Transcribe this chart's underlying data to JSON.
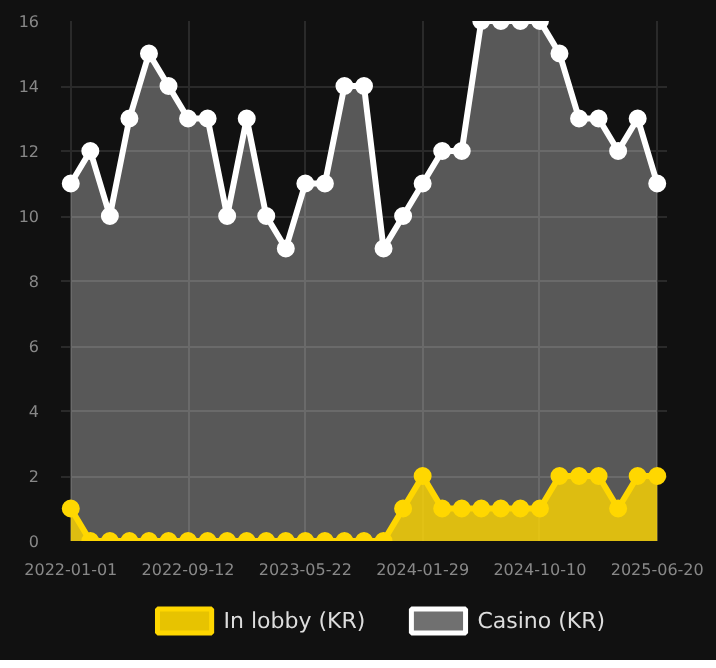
{
  "chart_data": {
    "type": "area",
    "categories": [
      "2022-01-01",
      null,
      null,
      null,
      null,
      null,
      "2022-09-12",
      null,
      null,
      null,
      null,
      null,
      "2023-05-22",
      null,
      null,
      null,
      null,
      null,
      "2024-01-29",
      null,
      null,
      null,
      null,
      null,
      "2024-10-10",
      null,
      null,
      null,
      null,
      null,
      "2025-06-20"
    ],
    "series": [
      {
        "name": "In lobby (KR)",
        "color": "#ffd700",
        "values": [
          1,
          0,
          0,
          0,
          0,
          0,
          0,
          0,
          0,
          0,
          0,
          0,
          0,
          0,
          0,
          0,
          0,
          1,
          2,
          1,
          1,
          1,
          1,
          1,
          1,
          2,
          2,
          2,
          1,
          2,
          2
        ]
      },
      {
        "name": "Casino (KR)",
        "color": "#ffffff",
        "values": [
          11,
          12,
          10,
          13,
          15,
          14,
          13,
          13,
          10,
          13,
          10,
          9,
          11,
          11,
          14,
          14,
          9,
          10,
          11,
          12,
          12,
          16,
          16,
          16,
          16,
          15,
          13,
          13,
          12,
          13,
          11
        ]
      }
    ],
    "ylim": [
      0,
      16
    ],
    "yticks": [
      0,
      2,
      4,
      6,
      8,
      10,
      12,
      14,
      16
    ],
    "grid": true,
    "legend": "bottom",
    "marker": "circle",
    "line_style": "solid"
  }
}
